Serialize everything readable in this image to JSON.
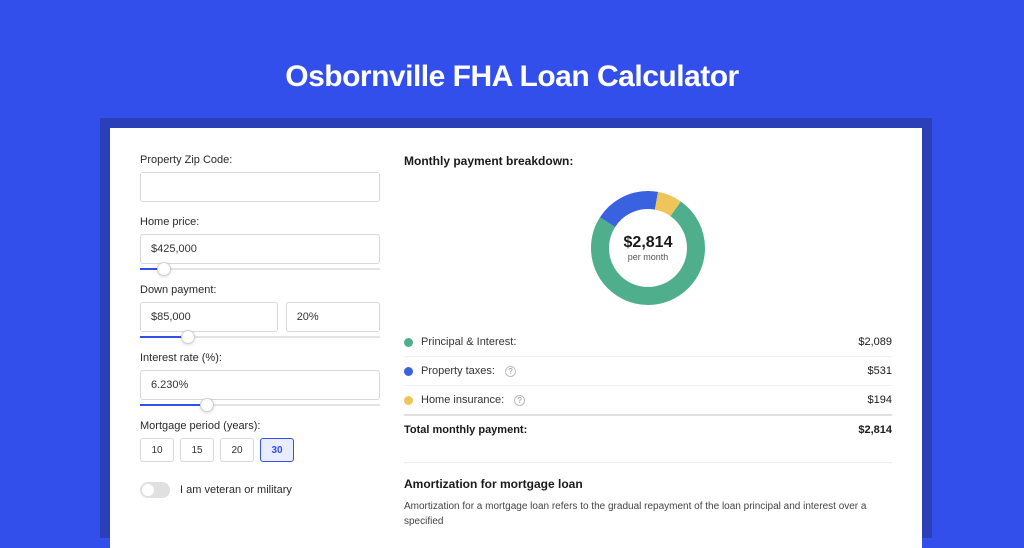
{
  "title": "Osbornville FHA Loan Calculator",
  "colors": {
    "page_bg": "#324feb",
    "shadow_bg": "#2a3fb8",
    "card_bg": "#ffffff",
    "accent": "#3250eb"
  },
  "form": {
    "zip_label": "Property Zip Code:",
    "zip_value": "",
    "home_price_label": "Home price:",
    "home_price_value": "$425,000",
    "home_price_slider_pct": 10,
    "down_payment_label": "Down payment:",
    "down_payment_value": "$85,000",
    "down_payment_pct_value": "20%",
    "down_payment_slider_pct": 20,
    "interest_label": "Interest rate (%):",
    "interest_value": "6.230%",
    "interest_slider_pct": 28,
    "period_label": "Mortgage period (years):",
    "periods": [
      "10",
      "15",
      "20",
      "30"
    ],
    "active_period_index": 3,
    "veteran_label": "I am veteran or military",
    "veteran_on": false
  },
  "breakdown": {
    "title": "Monthly payment breakdown:",
    "center_amount": "$2,814",
    "center_sub": "per month",
    "donut": {
      "radius": 48,
      "stroke_width": 18,
      "segments": [
        {
          "label": "Principal & Interest:",
          "value": "$2,089",
          "color": "#4fae8b",
          "fraction": 0.742
        },
        {
          "label": "Property taxes:",
          "value": "$531",
          "color": "#3a62e0",
          "fraction": 0.189,
          "info": true
        },
        {
          "label": "Home insurance:",
          "value": "$194",
          "color": "#edc55a",
          "fraction": 0.069,
          "info": true
        }
      ],
      "start_angle_deg": -35
    },
    "total_label": "Total monthly payment:",
    "total_value": "$2,814"
  },
  "amortization": {
    "title": "Amortization for mortgage loan",
    "text": "Amortization for a mortgage loan refers to the gradual repayment of the loan principal and interest over a specified"
  }
}
